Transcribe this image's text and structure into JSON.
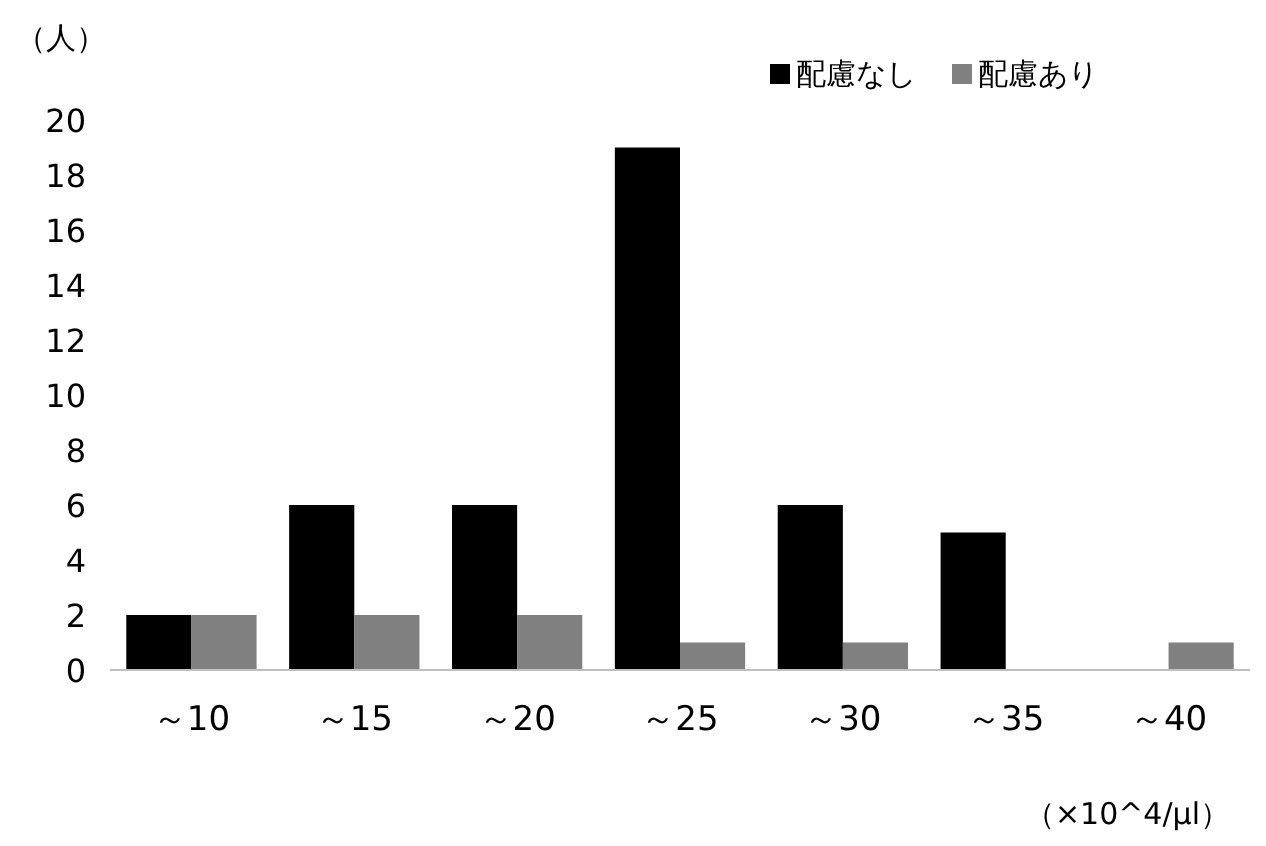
{
  "chart_data": {
    "type": "bar",
    "ylabel": "（人）",
    "categories": [
      "～10",
      "～15",
      "～20",
      "～25",
      "～30",
      "～35",
      "～40"
    ],
    "series": [
      {
        "name": "配慮なし",
        "color": "#000000",
        "values": [
          2,
          6,
          6,
          19,
          6,
          5,
          0
        ]
      },
      {
        "name": "配慮あり",
        "color": "#808080",
        "values": [
          2,
          2,
          2,
          1,
          1,
          0,
          1
        ]
      }
    ],
    "ylim": [
      0,
      20
    ],
    "yticks": [
      0,
      2,
      4,
      6,
      8,
      10,
      12,
      14,
      16,
      18,
      20
    ],
    "grid": false,
    "legend": "top right",
    "annotations": [
      "（×10^4/μl）"
    ]
  }
}
